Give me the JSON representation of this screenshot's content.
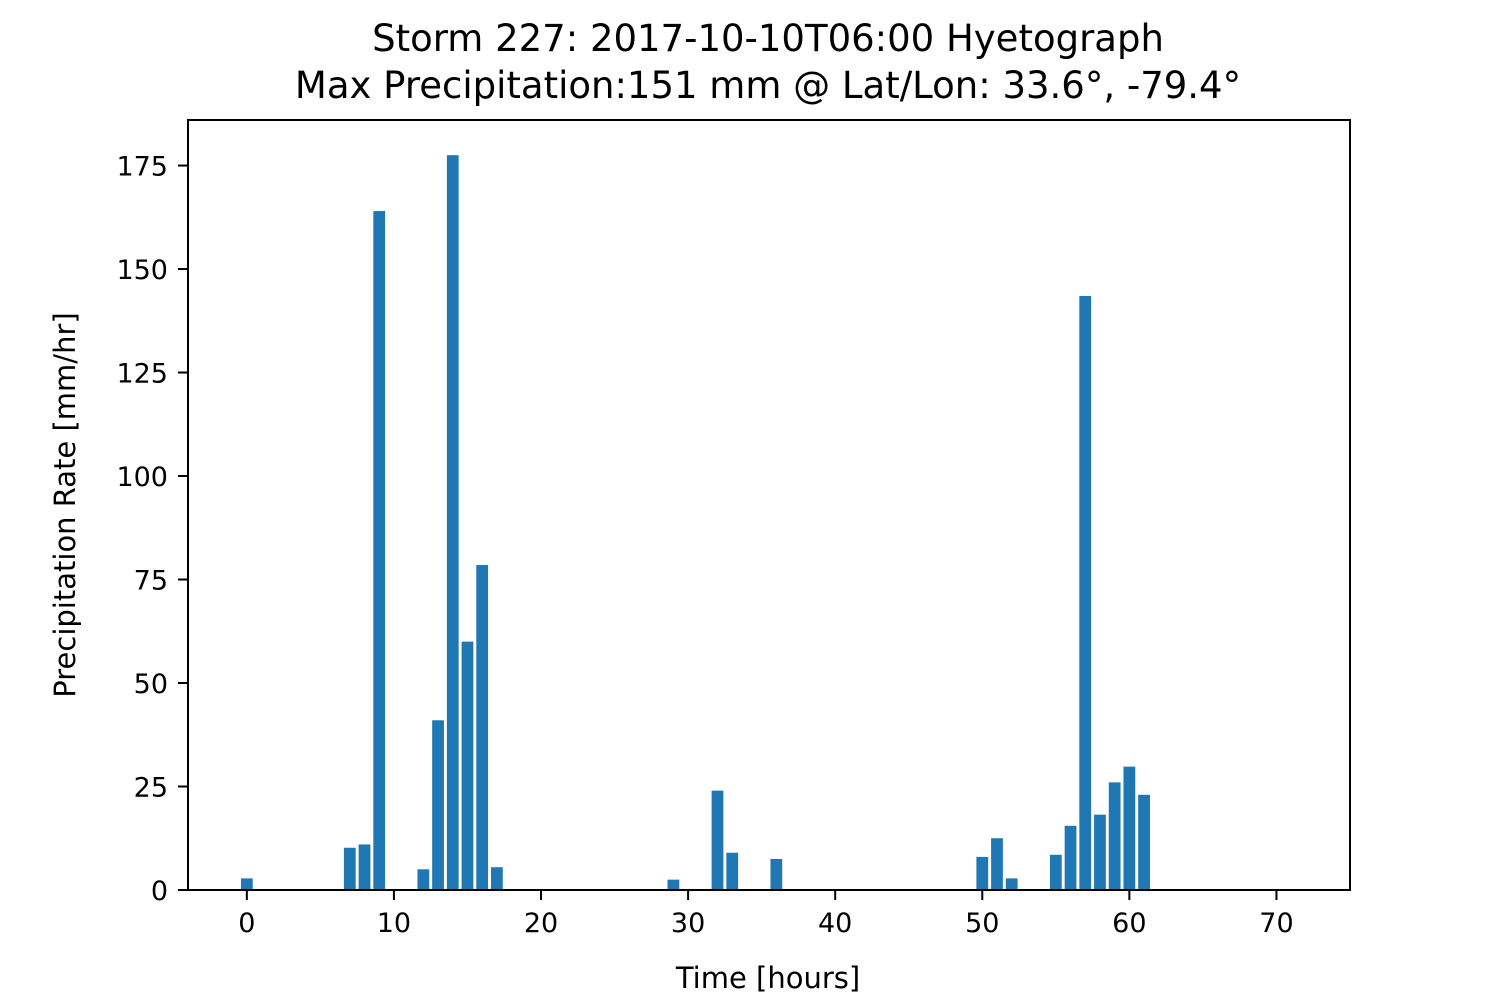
{
  "chart_data": {
    "type": "bar",
    "title": "Storm 227: 2017-10-10T06:00 Hyetograph",
    "subtitle": "Max Precipitation:151 mm @ Lat/Lon:  33.6°, -79.4°",
    "xlabel": "Time [hours]",
    "ylabel": "Precipitation Rate [mm/hr]",
    "xlim": [
      -4,
      75
    ],
    "ylim": [
      0,
      186
    ],
    "xticks": [
      0,
      10,
      20,
      30,
      40,
      50,
      60,
      70
    ],
    "yticks": [
      0,
      25,
      50,
      75,
      100,
      125,
      150,
      175
    ],
    "grid": false,
    "bar_color": "#1f77b4",
    "bar_width": 0.8,
    "series": [
      {
        "x": [
          0,
          7,
          8,
          9,
          12,
          13,
          14,
          15,
          16,
          17,
          29,
          32,
          33,
          36,
          50,
          51,
          52,
          55,
          56,
          57,
          58,
          59,
          60,
          61
        ],
        "values": [
          2.8,
          10.2,
          11.0,
          164.0,
          5.0,
          41.0,
          177.5,
          60.0,
          78.5,
          5.5,
          2.5,
          24.0,
          9.0,
          7.5,
          8.0,
          12.5,
          2.8,
          8.5,
          15.5,
          143.5,
          18.2,
          26.0,
          29.8,
          23.0
        ]
      }
    ]
  }
}
